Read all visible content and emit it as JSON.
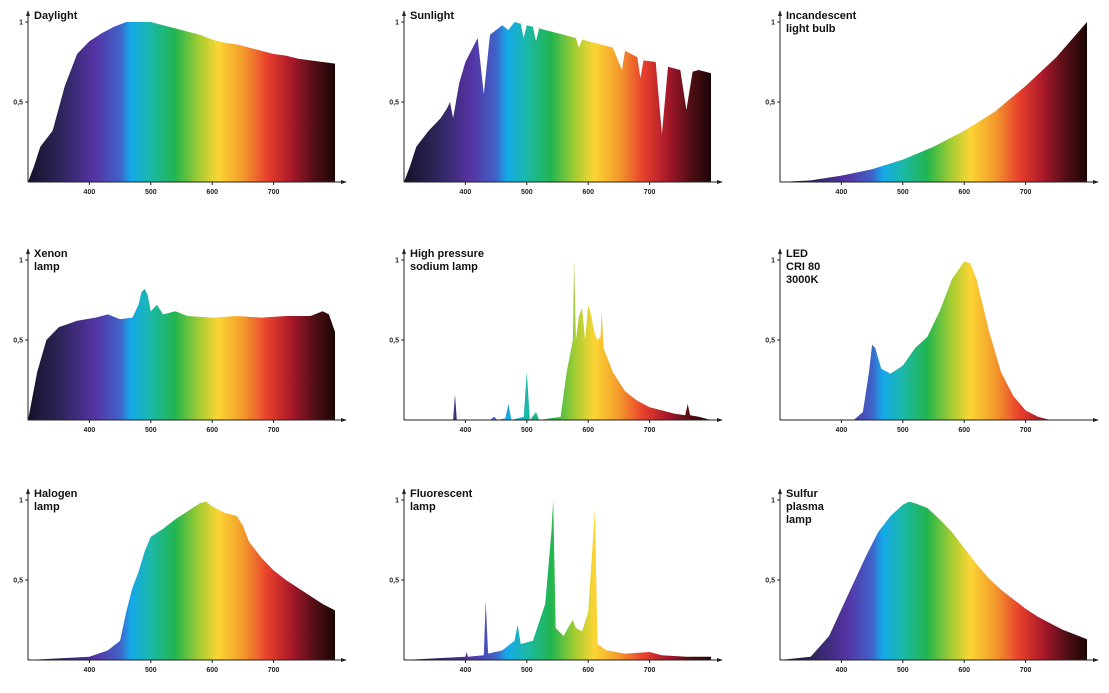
{
  "chart_data": [
    {
      "type": "area",
      "title": "Daylight",
      "xlim": [
        300,
        800
      ],
      "ylim": [
        0,
        1
      ],
      "x_ticks": [
        "400",
        "500",
        "600",
        "700"
      ],
      "y_ticks": [
        "0,5",
        "1"
      ],
      "points": [
        [
          300,
          0
        ],
        [
          310,
          0.1
        ],
        [
          320,
          0.22
        ],
        [
          340,
          0.32
        ],
        [
          360,
          0.6
        ],
        [
          380,
          0.8
        ],
        [
          400,
          0.88
        ],
        [
          420,
          0.93
        ],
        [
          440,
          0.97
        ],
        [
          460,
          1
        ],
        [
          480,
          1
        ],
        [
          500,
          1
        ],
        [
          520,
          0.98
        ],
        [
          540,
          0.96
        ],
        [
          560,
          0.94
        ],
        [
          580,
          0.92
        ],
        [
          600,
          0.89
        ],
        [
          620,
          0.87
        ],
        [
          640,
          0.86
        ],
        [
          660,
          0.84
        ],
        [
          680,
          0.82
        ],
        [
          700,
          0.8
        ],
        [
          720,
          0.79
        ],
        [
          740,
          0.77
        ],
        [
          760,
          0.76
        ],
        [
          780,
          0.75
        ],
        [
          800,
          0.74
        ]
      ]
    },
    {
      "type": "area",
      "title": "Sunlight",
      "xlim": [
        300,
        800
      ],
      "ylim": [
        0,
        1
      ],
      "x_ticks": [
        "400",
        "500",
        "600",
        "700"
      ],
      "y_ticks": [
        "0,5",
        "1"
      ],
      "points": [
        [
          300,
          0
        ],
        [
          310,
          0.1
        ],
        [
          320,
          0.22
        ],
        [
          340,
          0.32
        ],
        [
          360,
          0.4
        ],
        [
          370,
          0.46
        ],
        [
          375,
          0.5
        ],
        [
          380,
          0.4
        ],
        [
          390,
          0.62
        ],
        [
          400,
          0.75
        ],
        [
          420,
          0.9
        ],
        [
          430,
          0.55
        ],
        [
          440,
          0.92
        ],
        [
          460,
          0.98
        ],
        [
          470,
          0.95
        ],
        [
          480,
          1
        ],
        [
          490,
          0.99
        ],
        [
          495,
          0.9
        ],
        [
          500,
          0.98
        ],
        [
          510,
          0.97
        ],
        [
          515,
          0.88
        ],
        [
          520,
          0.96
        ],
        [
          540,
          0.94
        ],
        [
          560,
          0.92
        ],
        [
          580,
          0.9
        ],
        [
          585,
          0.84
        ],
        [
          590,
          0.89
        ],
        [
          620,
          0.86
        ],
        [
          640,
          0.84
        ],
        [
          655,
          0.7
        ],
        [
          660,
          0.82
        ],
        [
          680,
          0.78
        ],
        [
          685,
          0.65
        ],
        [
          690,
          0.76
        ],
        [
          710,
          0.75
        ],
        [
          720,
          0.3
        ],
        [
          730,
          0.72
        ],
        [
          750,
          0.7
        ],
        [
          760,
          0.45
        ],
        [
          770,
          0.69
        ],
        [
          780,
          0.7
        ],
        [
          800,
          0.68
        ]
      ]
    },
    {
      "type": "area",
      "title": "Incandescent\nlight bulb",
      "xlim": [
        300,
        800
      ],
      "ylim": [
        0,
        1
      ],
      "x_ticks": [
        "400",
        "500",
        "600",
        "700"
      ],
      "y_ticks": [
        "0,5",
        "1"
      ],
      "points": [
        [
          300,
          0
        ],
        [
          350,
          0.01
        ],
        [
          400,
          0.04
        ],
        [
          450,
          0.08
        ],
        [
          500,
          0.14
        ],
        [
          550,
          0.22
        ],
        [
          600,
          0.32
        ],
        [
          650,
          0.44
        ],
        [
          700,
          0.6
        ],
        [
          750,
          0.78
        ],
        [
          800,
          1
        ]
      ]
    },
    {
      "type": "area",
      "title": "Xenon\nlamp",
      "xlim": [
        300,
        800
      ],
      "ylim": [
        0,
        1
      ],
      "x_ticks": [
        "400",
        "500",
        "600",
        "700"
      ],
      "y_ticks": [
        "0,5",
        "1"
      ],
      "points": [
        [
          300,
          0
        ],
        [
          305,
          0.1
        ],
        [
          315,
          0.3
        ],
        [
          330,
          0.5
        ],
        [
          350,
          0.58
        ],
        [
          380,
          0.62
        ],
        [
          410,
          0.64
        ],
        [
          430,
          0.66
        ],
        [
          450,
          0.63
        ],
        [
          470,
          0.64
        ],
        [
          480,
          0.72
        ],
        [
          485,
          0.8
        ],
        [
          490,
          0.82
        ],
        [
          495,
          0.78
        ],
        [
          500,
          0.68
        ],
        [
          510,
          0.72
        ],
        [
          520,
          0.66
        ],
        [
          540,
          0.68
        ],
        [
          560,
          0.65
        ],
        [
          600,
          0.64
        ],
        [
          640,
          0.65
        ],
        [
          680,
          0.64
        ],
        [
          720,
          0.65
        ],
        [
          760,
          0.65
        ],
        [
          780,
          0.68
        ],
        [
          790,
          0.66
        ],
        [
          800,
          0.55
        ]
      ]
    },
    {
      "type": "area",
      "title": "High pressure\nsodium lamp",
      "xlim": [
        300,
        800
      ],
      "ylim": [
        0,
        1
      ],
      "x_ticks": [
        "400",
        "500",
        "600",
        "700"
      ],
      "y_ticks": [
        "0,5",
        "1"
      ],
      "points": [
        [
          300,
          0
        ],
        [
          380,
          0
        ],
        [
          383,
          0.16
        ],
        [
          386,
          0
        ],
        [
          440,
          0
        ],
        [
          447,
          0.02
        ],
        [
          452,
          0
        ],
        [
          465,
          0.01
        ],
        [
          470,
          0.1
        ],
        [
          475,
          0
        ],
        [
          495,
          0.02
        ],
        [
          500,
          0.3
        ],
        [
          505,
          0
        ],
        [
          515,
          0.05
        ],
        [
          520,
          0
        ],
        [
          555,
          0.02
        ],
        [
          565,
          0.3
        ],
        [
          575,
          0.5
        ],
        [
          577,
          1
        ],
        [
          580,
          0.5
        ],
        [
          585,
          0.65
        ],
        [
          590,
          0.7
        ],
        [
          595,
          0.5
        ],
        [
          600,
          0.72
        ],
        [
          605,
          0.65
        ],
        [
          610,
          0.55
        ],
        [
          615,
          0.5
        ],
        [
          620,
          0.52
        ],
        [
          622,
          0.68
        ],
        [
          625,
          0.45
        ],
        [
          640,
          0.3
        ],
        [
          660,
          0.18
        ],
        [
          680,
          0.12
        ],
        [
          700,
          0.08
        ],
        [
          720,
          0.06
        ],
        [
          740,
          0.04
        ],
        [
          758,
          0.03
        ],
        [
          762,
          0.1
        ],
        [
          766,
          0.03
        ],
        [
          780,
          0.02
        ],
        [
          800,
          0
        ]
      ]
    },
    {
      "type": "area",
      "title": "LED\nCRI 80\n3000K",
      "xlim": [
        300,
        800
      ],
      "ylim": [
        0,
        1
      ],
      "x_ticks": [
        "400",
        "500",
        "600",
        "700"
      ],
      "y_ticks": [
        "0,5",
        "1"
      ],
      "points": [
        [
          300,
          0
        ],
        [
          420,
          0
        ],
        [
          435,
          0.05
        ],
        [
          445,
          0.3
        ],
        [
          450,
          0.47
        ],
        [
          455,
          0.45
        ],
        [
          465,
          0.32
        ],
        [
          480,
          0.29
        ],
        [
          500,
          0.34
        ],
        [
          520,
          0.45
        ],
        [
          540,
          0.52
        ],
        [
          560,
          0.68
        ],
        [
          580,
          0.88
        ],
        [
          600,
          0.99
        ],
        [
          610,
          0.98
        ],
        [
          620,
          0.88
        ],
        [
          640,
          0.56
        ],
        [
          660,
          0.3
        ],
        [
          680,
          0.15
        ],
        [
          700,
          0.06
        ],
        [
          720,
          0.02
        ],
        [
          740,
          0
        ],
        [
          800,
          0
        ]
      ]
    },
    {
      "type": "area",
      "title": "Halogen\nlamp",
      "xlim": [
        300,
        800
      ],
      "ylim": [
        0,
        1
      ],
      "x_ticks": [
        "400",
        "500",
        "600",
        "700"
      ],
      "y_ticks": [
        "0,5",
        "1"
      ],
      "points": [
        [
          300,
          0
        ],
        [
          400,
          0.02
        ],
        [
          430,
          0.06
        ],
        [
          450,
          0.12
        ],
        [
          460,
          0.3
        ],
        [
          470,
          0.45
        ],
        [
          480,
          0.55
        ],
        [
          490,
          0.68
        ],
        [
          500,
          0.77
        ],
        [
          520,
          0.82
        ],
        [
          540,
          0.88
        ],
        [
          560,
          0.93
        ],
        [
          580,
          0.98
        ],
        [
          590,
          0.99
        ],
        [
          600,
          0.96
        ],
        [
          620,
          0.92
        ],
        [
          640,
          0.9
        ],
        [
          650,
          0.84
        ],
        [
          660,
          0.74
        ],
        [
          680,
          0.64
        ],
        [
          700,
          0.56
        ],
        [
          720,
          0.5
        ],
        [
          740,
          0.45
        ],
        [
          760,
          0.4
        ],
        [
          780,
          0.35
        ],
        [
          800,
          0.31
        ]
      ]
    },
    {
      "type": "area",
      "title": "Fluorescent\nlamp",
      "xlim": [
        300,
        800
      ],
      "ylim": [
        0,
        1
      ],
      "x_ticks": [
        "400",
        "500",
        "600",
        "700"
      ],
      "y_ticks": [
        "0,5",
        "1"
      ],
      "points": [
        [
          300,
          0
        ],
        [
          350,
          0.01
        ],
        [
          400,
          0.02
        ],
        [
          402,
          0.05
        ],
        [
          404,
          0.02
        ],
        [
          430,
          0.03
        ],
        [
          433,
          0.37
        ],
        [
          437,
          0.04
        ],
        [
          460,
          0.06
        ],
        [
          480,
          0.12
        ],
        [
          485,
          0.22
        ],
        [
          490,
          0.1
        ],
        [
          510,
          0.12
        ],
        [
          530,
          0.35
        ],
        [
          540,
          0.8
        ],
        [
          543,
          1
        ],
        [
          547,
          0.2
        ],
        [
          560,
          0.15
        ],
        [
          570,
          0.22
        ],
        [
          575,
          0.25
        ],
        [
          580,
          0.2
        ],
        [
          590,
          0.18
        ],
        [
          600,
          0.3
        ],
        [
          611,
          0.95
        ],
        [
          615,
          0.1
        ],
        [
          630,
          0.06
        ],
        [
          660,
          0.04
        ],
        [
          700,
          0.05
        ],
        [
          720,
          0.03
        ],
        [
          760,
          0.02
        ],
        [
          800,
          0.02
        ]
      ]
    },
    {
      "type": "area",
      "title": "Sulfur\nplasma\nlamp",
      "xlim": [
        300,
        800
      ],
      "ylim": [
        0,
        1
      ],
      "x_ticks": [
        "400",
        "500",
        "600",
        "700"
      ],
      "y_ticks": [
        "0,5",
        "1"
      ],
      "points": [
        [
          300,
          0
        ],
        [
          350,
          0.02
        ],
        [
          380,
          0.15
        ],
        [
          410,
          0.4
        ],
        [
          440,
          0.65
        ],
        [
          460,
          0.8
        ],
        [
          480,
          0.9
        ],
        [
          500,
          0.97
        ],
        [
          510,
          0.99
        ],
        [
          520,
          0.98
        ],
        [
          540,
          0.95
        ],
        [
          560,
          0.88
        ],
        [
          580,
          0.8
        ],
        [
          600,
          0.7
        ],
        [
          620,
          0.6
        ],
        [
          640,
          0.51
        ],
        [
          660,
          0.44
        ],
        [
          680,
          0.38
        ],
        [
          700,
          0.32
        ],
        [
          720,
          0.27
        ],
        [
          740,
          0.23
        ],
        [
          760,
          0.19
        ],
        [
          780,
          0.16
        ],
        [
          800,
          0.13
        ]
      ]
    }
  ]
}
